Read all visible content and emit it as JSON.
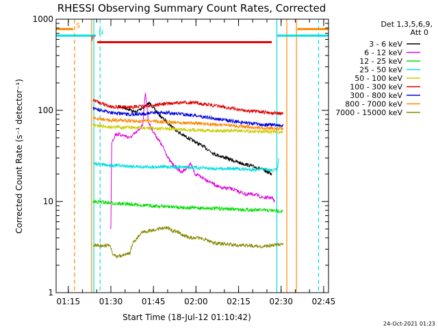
{
  "chart_data": {
    "type": "line",
    "title": "RHESSI Observing Summary Count Rates, Corrected",
    "ylabel": "Corrected Count Rate (s⁻¹ detector⁻¹)",
    "xlabel": "Start Time (18-Jul-12 01:10:42)",
    "yscale": "log",
    "ylim": [
      1,
      1000
    ],
    "xlim_minutes": [
      0,
      96
    ],
    "x_ticks": [
      {
        "label": "01:15",
        "minute": 4.3
      },
      {
        "label": "01:30",
        "minute": 19.3
      },
      {
        "label": "01:45",
        "minute": 34.3
      },
      {
        "label": "02:00",
        "minute": 49.3
      },
      {
        "label": "02:15",
        "minute": 64.3
      },
      {
        "label": "02:30",
        "minute": 79.3
      },
      {
        "label": "02:45",
        "minute": 94.3
      }
    ],
    "y_ticks": [
      {
        "label": "1",
        "value": 1
      },
      {
        "label": "10",
        "value": 10
      },
      {
        "label": "100",
        "value": 100
      },
      {
        "label": "1000",
        "value": 1000
      }
    ],
    "legend": {
      "placement": "right",
      "header": [
        "Det 1,3,5,6,9,",
        "Att 0"
      ]
    },
    "series": [
      {
        "name": "3 - 6 keV",
        "color": "#000000",
        "points": [
          [
            22,
            110
          ],
          [
            25,
            105
          ],
          [
            28,
            95
          ],
          [
            31,
            110
          ],
          [
            33,
            120
          ],
          [
            35,
            100
          ],
          [
            37,
            85
          ],
          [
            40,
            70
          ],
          [
            44,
            55
          ],
          [
            48,
            47
          ],
          [
            52,
            40
          ],
          [
            56,
            33
          ],
          [
            60,
            30
          ],
          [
            64,
            27
          ],
          [
            68,
            25
          ],
          [
            72,
            23
          ],
          [
            76,
            20
          ]
        ]
      },
      {
        "name": "6 - 12 keV",
        "color": "#dd00dd",
        "points": [
          [
            19,
            5
          ],
          [
            19.3,
            5
          ],
          [
            19.6,
            45
          ],
          [
            21,
            55
          ],
          [
            24,
            53
          ],
          [
            26,
            50
          ],
          [
            29,
            60
          ],
          [
            30.5,
            70
          ],
          [
            31.5,
            160
          ],
          [
            32.5,
            75
          ],
          [
            34,
            60
          ],
          [
            36,
            48
          ],
          [
            38,
            38
          ],
          [
            40,
            28
          ],
          [
            42,
            24
          ],
          [
            44,
            21
          ],
          [
            46,
            23
          ],
          [
            47.5,
            26
          ],
          [
            49,
            20
          ],
          [
            52,
            18
          ],
          [
            55,
            16
          ],
          [
            58,
            14
          ],
          [
            61,
            14
          ],
          [
            64,
            13
          ],
          [
            67,
            12
          ],
          [
            70,
            12
          ],
          [
            73,
            11
          ],
          [
            76,
            11
          ],
          [
            77,
            10
          ]
        ]
      },
      {
        "name": "12 - 25 keV",
        "color": "#00dd00",
        "points": [
          [
            13,
            10
          ],
          [
            17,
            9.8
          ],
          [
            21,
            9.5
          ],
          [
            27,
            9.3
          ],
          [
            33,
            9.0
          ],
          [
            39,
            8.8
          ],
          [
            45,
            8.6
          ],
          [
            51,
            8.5
          ],
          [
            57,
            8.4
          ],
          [
            63,
            8.2
          ],
          [
            69,
            8.1
          ],
          [
            75,
            8.0
          ],
          [
            80,
            7.8
          ]
        ]
      },
      {
        "name": "25 - 50 keV",
        "color": "#00dddd",
        "points": [
          [
            13,
            26
          ],
          [
            19,
            25
          ],
          [
            25,
            24.5
          ],
          [
            31,
            24
          ],
          [
            37,
            24
          ],
          [
            43,
            24
          ],
          [
            49,
            23.5
          ],
          [
            55,
            23
          ],
          [
            61,
            23
          ],
          [
            67,
            22.5
          ],
          [
            73,
            22.5
          ],
          [
            77,
            22
          ],
          [
            78,
            23
          ],
          [
            78.5,
            30
          ]
        ]
      },
      {
        "name": "50 - 100 keV",
        "color": "#cccc00",
        "points": [
          [
            13,
            68
          ],
          [
            19,
            66
          ],
          [
            25,
            65
          ],
          [
            31,
            64
          ],
          [
            37,
            63
          ],
          [
            43,
            62
          ],
          [
            49,
            61
          ],
          [
            55,
            60
          ],
          [
            61,
            60
          ],
          [
            67,
            59
          ],
          [
            73,
            58
          ],
          [
            80,
            58
          ]
        ]
      },
      {
        "name": "100 - 300 keV",
        "color": "#dd0000",
        "points": [
          [
            13,
            130
          ],
          [
            16,
            120
          ],
          [
            19,
            110
          ],
          [
            24,
            108
          ],
          [
            29,
            110
          ],
          [
            34,
            113
          ],
          [
            38,
            118
          ],
          [
            42,
            120
          ],
          [
            46,
            122
          ],
          [
            50,
            120
          ],
          [
            54,
            115
          ],
          [
            58,
            110
          ],
          [
            62,
            105
          ],
          [
            66,
            100
          ],
          [
            70,
            97
          ],
          [
            74,
            95
          ],
          [
            80,
            92
          ]
        ]
      },
      {
        "name": "300 - 800 keV",
        "color": "#0000dd",
        "points": [
          [
            13,
            105
          ],
          [
            19,
            95
          ],
          [
            25,
            90
          ],
          [
            31,
            92
          ],
          [
            37,
            95
          ],
          [
            43,
            92
          ],
          [
            49,
            88
          ],
          [
            55,
            82
          ],
          [
            61,
            77
          ],
          [
            67,
            73
          ],
          [
            73,
            70
          ],
          [
            80,
            68
          ]
        ]
      },
      {
        "name": "800 - 7000 keV",
        "color": "#ff8800",
        "points": [
          [
            13,
            82
          ],
          [
            19,
            78
          ],
          [
            25,
            77
          ],
          [
            31,
            76
          ],
          [
            37,
            75
          ],
          [
            43,
            74
          ],
          [
            49,
            72
          ],
          [
            55,
            70
          ],
          [
            61,
            68
          ],
          [
            67,
            66
          ],
          [
            73,
            64
          ],
          [
            80,
            63
          ]
        ]
      },
      {
        "name": "7000 - 15000 keV",
        "color": "#888800",
        "points": [
          [
            13,
            3.3
          ],
          [
            17,
            3.3
          ],
          [
            19,
            3.3
          ],
          [
            20,
            2.6
          ],
          [
            22,
            2.5
          ],
          [
            24,
            2.6
          ],
          [
            26,
            2.7
          ],
          [
            27,
            3.5
          ],
          [
            30,
            4.5
          ],
          [
            33,
            4.8
          ],
          [
            36,
            5.0
          ],
          [
            39,
            5.2
          ],
          [
            41,
            4.8
          ],
          [
            43,
            4.6
          ],
          [
            45,
            4.2
          ],
          [
            48,
            4.0
          ],
          [
            50,
            4.0
          ],
          [
            53,
            3.8
          ],
          [
            56,
            3.5
          ],
          [
            60,
            3.4
          ],
          [
            64,
            3.3
          ],
          [
            68,
            3.3
          ],
          [
            72,
            3.2
          ],
          [
            76,
            3.3
          ],
          [
            80,
            3.4
          ]
        ]
      }
    ],
    "flag_bars": [
      {
        "label": "S",
        "color": "#ff8800",
        "segments": [
          [
            0,
            6
          ],
          [
            85,
            96
          ]
        ],
        "value": 780
      },
      {
        "label": "N",
        "color": "#00dddd",
        "segments": [
          [
            0,
            14
          ],
          [
            78,
            96
          ]
        ],
        "value": 660
      },
      {
        "label": "F",
        "color": "#ee0000",
        "segments": [
          [
            14.5,
            76
          ]
        ],
        "value": 560
      }
    ],
    "vertical_markers": [
      {
        "minute": 6.5,
        "color": "#ff8800",
        "style": "dashed"
      },
      {
        "minute": 15.5,
        "color": "#00dddd",
        "style": "dashed"
      },
      {
        "minute": 12.5,
        "color": "#ff8800",
        "style": "solid"
      },
      {
        "minute": 13.3,
        "color": "#00dddd",
        "style": "solid"
      },
      {
        "minute": 77.8,
        "color": "#00dddd",
        "style": "solid"
      },
      {
        "minute": 81.3,
        "color": "#ff8800",
        "style": "solid"
      },
      {
        "minute": 84.7,
        "color": "#ff8800",
        "style": "solid"
      },
      {
        "minute": 92.5,
        "color": "#00dddd",
        "style": "dashed"
      }
    ]
  },
  "footer_timestamp": "24-Oct-2021 01:23"
}
